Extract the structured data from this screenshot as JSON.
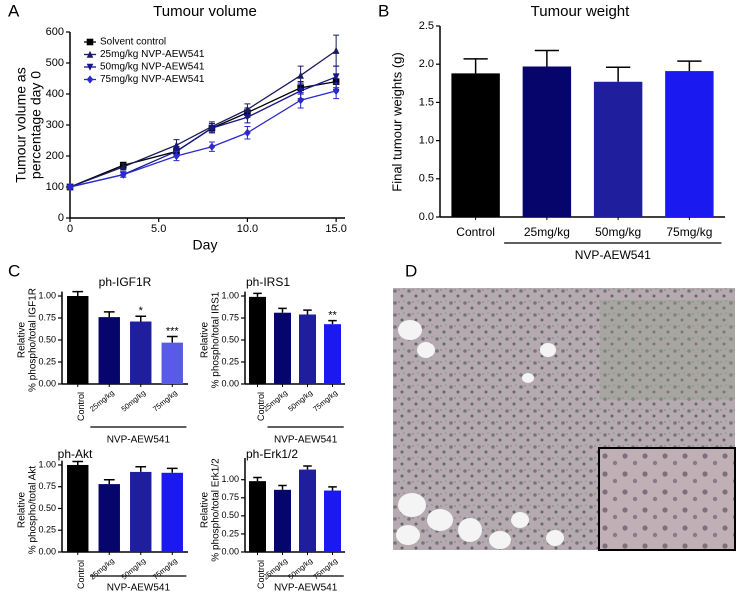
{
  "chart_data": [
    {
      "type": "line",
      "panel": "A",
      "title": "Tumour volume",
      "x_label": "Day",
      "y_label": [
        "Tumour volume as",
        "percentage day 0"
      ],
      "x": [
        0,
        3,
        6,
        8,
        10,
        13,
        15
      ],
      "xlim": [
        0,
        15.5
      ],
      "xticks": [
        0,
        {
          "value": 5,
          "label": "5.0"
        },
        {
          "value": 10,
          "label": "10.0"
        },
        {
          "value": 15,
          "label": "15.0"
        }
      ],
      "ylim": [
        0,
        600
      ],
      "yticks": [
        0,
        100,
        200,
        300,
        400,
        500,
        600
      ],
      "legend": "upper left",
      "series": [
        {
          "name": "Solvent control",
          "color": "#000000",
          "marker": "square",
          "values": [
            100,
            170,
            215,
            290,
            340,
            420,
            440
          ],
          "errors": [
            5,
            10,
            15,
            15,
            15,
            20,
            25
          ]
        },
        {
          "name": "25mg/kg NVP-AEW541",
          "color": "#1a1a5e",
          "marker": "triangle",
          "values": [
            100,
            165,
            235,
            295,
            350,
            460,
            540
          ],
          "errors": [
            5,
            10,
            18,
            15,
            18,
            30,
            50
          ]
        },
        {
          "name": "50mg/kg NVP-AEW541",
          "color": "#16168c",
          "marker": "triangle-down",
          "values": [
            100,
            140,
            215,
            290,
            325,
            410,
            455
          ],
          "errors": [
            5,
            8,
            15,
            15,
            18,
            25,
            35
          ]
        },
        {
          "name": "75mg/kg NVP-AEW541",
          "color": "#2a2ad0",
          "marker": "diamond",
          "values": [
            100,
            140,
            200,
            230,
            275,
            380,
            410
          ],
          "errors": [
            5,
            8,
            15,
            15,
            20,
            25,
            25
          ]
        }
      ]
    },
    {
      "type": "bar",
      "panel": "B",
      "title": "Tumour weight",
      "y_label": [
        "Final tumour weights (g)"
      ],
      "categories": [
        "Control",
        "25mg/kg",
        "50mg/kg",
        "75mg/kg"
      ],
      "values": [
        1.88,
        1.97,
        1.77,
        1.91
      ],
      "errors": [
        0.19,
        0.21,
        0.19,
        0.13
      ],
      "colors": [
        "#000000",
        "#05056b",
        "#1f1f9e",
        "#1a1af0"
      ],
      "group_label": "NVP-AEW541",
      "ylim": [
        0,
        2.5
      ],
      "yticks": [
        {
          "value": 0,
          "label": "0.0"
        },
        0.5,
        {
          "value": 1,
          "label": "1.0"
        },
        1.5,
        {
          "value": 2,
          "label": "2.0"
        },
        2.5
      ]
    },
    {
      "type": "bar",
      "panel": "C",
      "title": "ph-IGF1R",
      "y_label": [
        "Relative",
        "% phospho/total IGF1R"
      ],
      "categories": [
        "Control",
        "25mg/kg",
        "50mg/kg",
        "75mg/kg"
      ],
      "values": [
        1.0,
        0.76,
        0.71,
        0.47
      ],
      "errors": [
        0.05,
        0.06,
        0.06,
        0.07
      ],
      "value_annotations": [
        null,
        null,
        "*",
        "***"
      ],
      "colors": [
        "#000000",
        "#05056b",
        "#1f1f9e",
        "#5a5ae8"
      ],
      "group_label": "NVP-AEW541",
      "ylim": [
        0,
        1.05
      ],
      "yticks": [
        {
          "value": 0,
          "label": "0.00"
        },
        0.25,
        {
          "value": 0.5,
          "label": "0.50"
        },
        0.75,
        {
          "value": 1,
          "label": "1.00"
        }
      ]
    },
    {
      "type": "bar",
      "title": "ph-IRS1",
      "y_label": [
        "Relative",
        "% phospho/total IRS1"
      ],
      "categories": [
        "Control",
        "25mg/kg",
        "50mg/kg",
        "75mg/kg"
      ],
      "values": [
        0.99,
        0.81,
        0.79,
        0.68
      ],
      "errors": [
        0.04,
        0.05,
        0.05,
        0.04
      ],
      "value_annotations": [
        null,
        null,
        null,
        "**"
      ],
      "colors": [
        "#000000",
        "#05056b",
        "#1f1f9e",
        "#1a1af0"
      ],
      "group_label": "NVP-AEW541",
      "ylim": [
        0,
        1.05
      ],
      "yticks": [
        {
          "value": 0,
          "label": "0.00"
        },
        0.25,
        {
          "value": 0.5,
          "label": "0.50"
        },
        0.75,
        {
          "value": 1,
          "label": "1.00"
        }
      ]
    },
    {
      "type": "bar",
      "title": "ph-Akt",
      "y_label": [
        "Relative",
        "% phospho/total Akt"
      ],
      "categories": [
        "Control",
        "25mg/kg",
        "50mg/kg",
        "75mg/kg"
      ],
      "values": [
        1.0,
        0.78,
        0.92,
        0.91
      ],
      "errors": [
        0.04,
        0.05,
        0.06,
        0.05
      ],
      "colors": [
        "#000000",
        "#05056b",
        "#1f1f9e",
        "#1a1af0"
      ],
      "group_label": "NVP-AEW541",
      "ylim": [
        0,
        1.05
      ],
      "yticks": [
        {
          "value": 0,
          "label": "0.00"
        },
        0.25,
        {
          "value": 0.5,
          "label": "0.50"
        },
        0.75,
        {
          "value": 1,
          "label": "1.00"
        }
      ]
    },
    {
      "type": "bar",
      "title": "ph-Erk1/2",
      "y_label": [
        "Relative",
        "% phospho/total Erk1/2"
      ],
      "categories": [
        "Control",
        "25mg/kg",
        "50mg/kg",
        "75mg/kg"
      ],
      "values": [
        0.98,
        0.86,
        1.14,
        0.85
      ],
      "errors": [
        0.05,
        0.06,
        0.05,
        0.05
      ],
      "colors": [
        "#000000",
        "#05056b",
        "#1f1f9e",
        "#1a1af0"
      ],
      "group_label": "NVP-AEW541",
      "ylim": [
        0,
        1.3
      ],
      "yticks": [
        {
          "value": 0,
          "label": "0.00"
        },
        0.25,
        {
          "value": 0.5,
          "label": "0.50"
        },
        0.75,
        {
          "value": 1,
          "label": "1.00"
        }
      ]
    }
  ],
  "panel_d": {
    "label": "D"
  }
}
